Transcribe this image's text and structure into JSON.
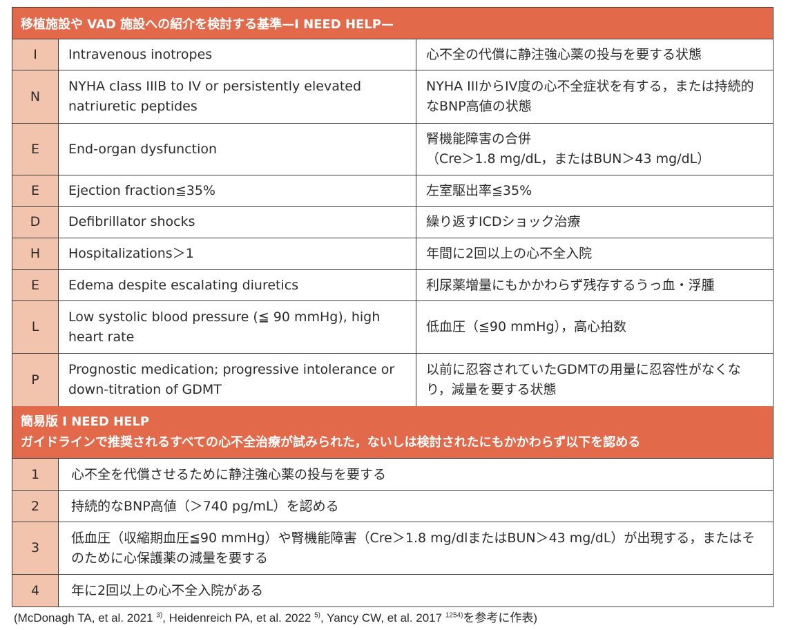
{
  "title": "移植施設や VAD 施設への紹介を検討する基準—I NEED HELP—",
  "rows": [
    {
      "key": "I",
      "en": "Intravenous inotropes",
      "ja": "心不全の代償に静注強心薬の投与を要する状態"
    },
    {
      "key": "N",
      "en": "NYHA class IIIB to IV or persistently elevated natriuretic peptides",
      "ja": "NYHA IIIからIV度の心不全症状を有する，または持続的なBNP高値の状態"
    },
    {
      "key": "E",
      "en": "End-organ dysfunction",
      "ja": "腎機能障害の合併\n（Cre＞1.8 mg/dL，またはBUN＞43 mg/dL）"
    },
    {
      "key": "E",
      "en": "Ejection fraction≦35%",
      "ja": "左室駆出率≦35%"
    },
    {
      "key": "D",
      "en": "Defibrillator shocks",
      "ja": "繰り返すICDショック治療"
    },
    {
      "key": "H",
      "en": "Hospitalizations＞1",
      "ja": "年間に2回以上の心不全入院"
    },
    {
      "key": "E",
      "en": "Edema despite escalating diuretics",
      "ja": "利尿薬増量にもかかわらず残存するうっ血・浮腫"
    },
    {
      "key": "L",
      "en": "Low systolic blood pressure (≦ 90 mmHg), high heart rate",
      "ja": "低血圧（≦90 mmHg），高心拍数"
    },
    {
      "key": "P",
      "en": "Prognostic medication; progressive intolerance or down-titration of GDMT",
      "ja": "以前に忍容されていたGDMTの用量に忍容性がなくなり，減量を要する状態"
    }
  ],
  "simple": {
    "title": "簡易版 I NEED HELP",
    "subtitle": "ガイドラインで推奨されるすべての心不全治療が試みられた，ないしは検討されたにもかかわらず以下を認める",
    "rows": [
      {
        "key": "1",
        "text": "心不全を代償させるために静注強心薬の投与を要する"
      },
      {
        "key": "2",
        "text": "持続的なBNP高値（＞740 pg/mL）を認める"
      },
      {
        "key": "3",
        "text": "低血圧（収縮期血圧≦90 mmHg）や腎機能障害（Cre＞1.8 mg/dlまたはBUN＞43 mg/dL）が出現する，またはそのために心保護薬の減量を要する"
      },
      {
        "key": "4",
        "text": "年に2回以上の心不全入院がある"
      }
    ]
  },
  "citation": {
    "open": "(McDonagh TA, et al. 2021 ",
    "ref1": "3)",
    "mid1": ", Heidenreich PA, et al. 2022 ",
    "ref2": "5)",
    "mid2": ", Yancy CW, et al. 2017 ",
    "ref3": "1254)",
    "close": "を参考に作表)"
  },
  "colors": {
    "header": "#E2694A",
    "key_cell": "#F2C4AE"
  }
}
